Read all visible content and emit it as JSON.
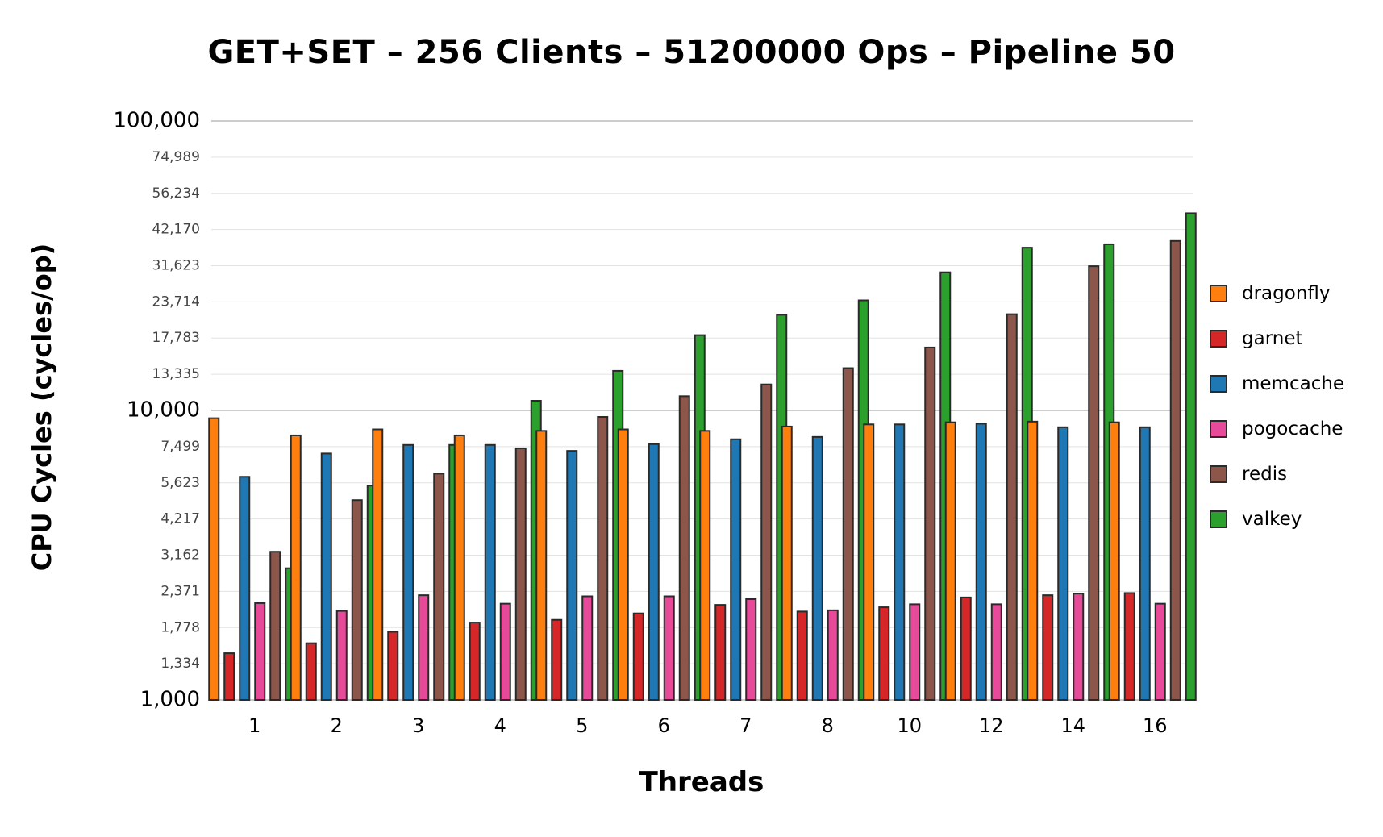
{
  "chart_data": {
    "type": "bar",
    "title": "GET+SET – 256 Clients – 51200000 Ops – Pipeline 50",
    "xlabel": "Threads",
    "ylabel": "CPU Cycles (cycles/op)",
    "yscale": "log",
    "ylim": [
      1000,
      100000
    ],
    "grid": true,
    "legend_position": "right",
    "y_ticks": [
      {
        "value": 1000,
        "label": "1,000",
        "major": true
      },
      {
        "value": 1334,
        "label": "1,334",
        "major": false
      },
      {
        "value": 1778,
        "label": "1,778",
        "major": false
      },
      {
        "value": 2371,
        "label": "2,371",
        "major": false
      },
      {
        "value": 3162,
        "label": "3,162",
        "major": false
      },
      {
        "value": 4217,
        "label": "4,217",
        "major": false
      },
      {
        "value": 5623,
        "label": "5,623",
        "major": false
      },
      {
        "value": 7499,
        "label": "7,499",
        "major": false
      },
      {
        "value": 10000,
        "label": "10,000",
        "major": true
      },
      {
        "value": 13335,
        "label": "13,335",
        "major": false
      },
      {
        "value": 17783,
        "label": "17,783",
        "major": false
      },
      {
        "value": 23714,
        "label": "23,714",
        "major": false
      },
      {
        "value": 31623,
        "label": "31,623",
        "major": false
      },
      {
        "value": 42170,
        "label": "42,170",
        "major": false
      },
      {
        "value": 56234,
        "label": "56,234",
        "major": false
      },
      {
        "value": 74989,
        "label": "74,989",
        "major": false
      },
      {
        "value": 100000,
        "label": "100,000",
        "major": true
      }
    ],
    "categories": [
      "1",
      "2",
      "3",
      "4",
      "5",
      "6",
      "7",
      "8",
      "10",
      "12",
      "14",
      "16"
    ],
    "series": [
      {
        "name": "dragonfly",
        "color": "#ff7f0e",
        "values": [
          9400,
          8200,
          8600,
          8200,
          8500,
          8600,
          8500,
          8800,
          8950,
          9100,
          9150,
          9100
        ]
      },
      {
        "name": "garnet",
        "color": "#d62728",
        "values": [
          1450,
          1570,
          1720,
          1850,
          1890,
          1990,
          2130,
          2020,
          2090,
          2260,
          2300,
          2340
        ]
      },
      {
        "name": "memcache",
        "color": "#1f77b4",
        "values": [
          5900,
          7100,
          7600,
          7600,
          7250,
          7650,
          7950,
          8100,
          8950,
          9000,
          8750,
          8750
        ]
      },
      {
        "name": "pogocache",
        "color": "#e84a9a",
        "values": [
          2160,
          2030,
          2300,
          2150,
          2280,
          2280,
          2230,
          2040,
          2140,
          2140,
          2330,
          2150
        ]
      },
      {
        "name": "redis",
        "color": "#8c564b",
        "values": [
          3250,
          4900,
          6050,
          7400,
          9500,
          11200,
          12300,
          14000,
          16500,
          21500,
          31500,
          38500
        ]
      },
      {
        "name": "valkey",
        "color": "#2ca02c",
        "values": [
          2850,
          5500,
          7600,
          10800,
          13700,
          18200,
          21400,
          24000,
          30000,
          36500,
          37500,
          48000
        ]
      }
    ]
  }
}
